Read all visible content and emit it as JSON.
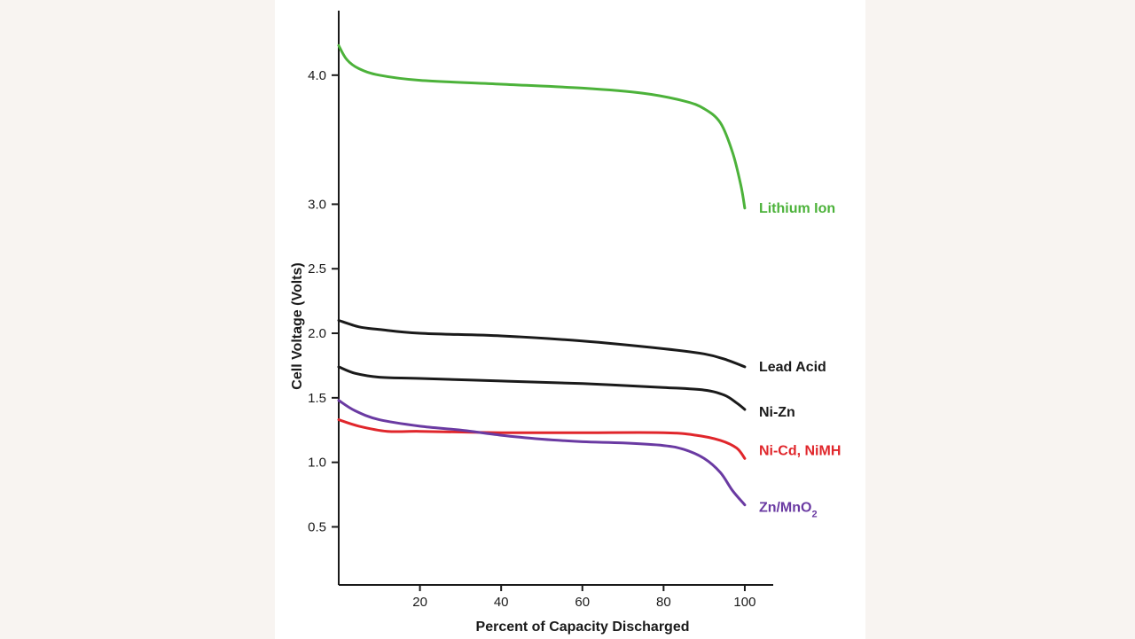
{
  "colors": {
    "page_background": "#f8f4f1",
    "panel_background": "#ffffff",
    "axis": "#1a1a1a"
  },
  "chart_data": {
    "type": "line",
    "title": "",
    "xlabel": "Percent of Capacity Discharged",
    "ylabel": "Cell Voltage (Volts)",
    "xlim": [
      0,
      107
    ],
    "ylim": [
      0.05,
      4.5
    ],
    "x_ticks": [
      20,
      40,
      60,
      80,
      100
    ],
    "y_ticks": [
      0.5,
      1.0,
      1.5,
      2.0,
      2.5,
      3.0,
      4.0
    ],
    "x_tick_labels": [
      "20",
      "40",
      "60",
      "80",
      "100"
    ],
    "y_tick_labels": [
      "0.5",
      "1.0",
      "1.5",
      "2.0",
      "2.5",
      "3.0",
      "4.0"
    ],
    "grid": false,
    "legend": "direct labels at line ends",
    "series": [
      {
        "name": "Lithium Ion",
        "color": "#4cb23a",
        "points": [
          [
            0,
            4.23
          ],
          [
            2,
            4.12
          ],
          [
            5,
            4.05
          ],
          [
            10,
            4.0
          ],
          [
            20,
            3.96
          ],
          [
            40,
            3.93
          ],
          [
            60,
            3.9
          ],
          [
            75,
            3.86
          ],
          [
            85,
            3.8
          ],
          [
            90,
            3.74
          ],
          [
            94,
            3.63
          ],
          [
            97,
            3.4
          ],
          [
            99,
            3.15
          ],
          [
            100,
            2.97
          ]
        ]
      },
      {
        "name": "Lead Acid",
        "color": "#1a1a1a",
        "points": [
          [
            0,
            2.1
          ],
          [
            5,
            2.05
          ],
          [
            10,
            2.03
          ],
          [
            20,
            2.0
          ],
          [
            40,
            1.98
          ],
          [
            60,
            1.94
          ],
          [
            80,
            1.88
          ],
          [
            90,
            1.84
          ],
          [
            95,
            1.8
          ],
          [
            100,
            1.74
          ]
        ]
      },
      {
        "name": "Ni-Zn",
        "color": "#1a1a1a",
        "points": [
          [
            0,
            1.74
          ],
          [
            4,
            1.69
          ],
          [
            10,
            1.66
          ],
          [
            20,
            1.65
          ],
          [
            40,
            1.63
          ],
          [
            60,
            1.61
          ],
          [
            80,
            1.58
          ],
          [
            90,
            1.56
          ],
          [
            95,
            1.52
          ],
          [
            98,
            1.46
          ],
          [
            100,
            1.41
          ]
        ]
      },
      {
        "name": "Ni-Cd, NiMH",
        "color": "#e0262b",
        "points": [
          [
            0,
            1.33
          ],
          [
            5,
            1.28
          ],
          [
            12,
            1.24
          ],
          [
            20,
            1.24
          ],
          [
            40,
            1.23
          ],
          [
            60,
            1.23
          ],
          [
            80,
            1.23
          ],
          [
            88,
            1.21
          ],
          [
            94,
            1.17
          ],
          [
            98,
            1.11
          ],
          [
            100,
            1.03
          ]
        ]
      },
      {
        "name": "Zn/MnO",
        "name_subscript": "2",
        "color": "#6a3aa2",
        "points": [
          [
            0,
            1.48
          ],
          [
            4,
            1.4
          ],
          [
            10,
            1.33
          ],
          [
            20,
            1.28
          ],
          [
            30,
            1.25
          ],
          [
            40,
            1.21
          ],
          [
            50,
            1.18
          ],
          [
            60,
            1.16
          ],
          [
            70,
            1.15
          ],
          [
            80,
            1.13
          ],
          [
            85,
            1.1
          ],
          [
            90,
            1.03
          ],
          [
            94,
            0.92
          ],
          [
            97,
            0.78
          ],
          [
            100,
            0.67
          ]
        ]
      }
    ]
  }
}
